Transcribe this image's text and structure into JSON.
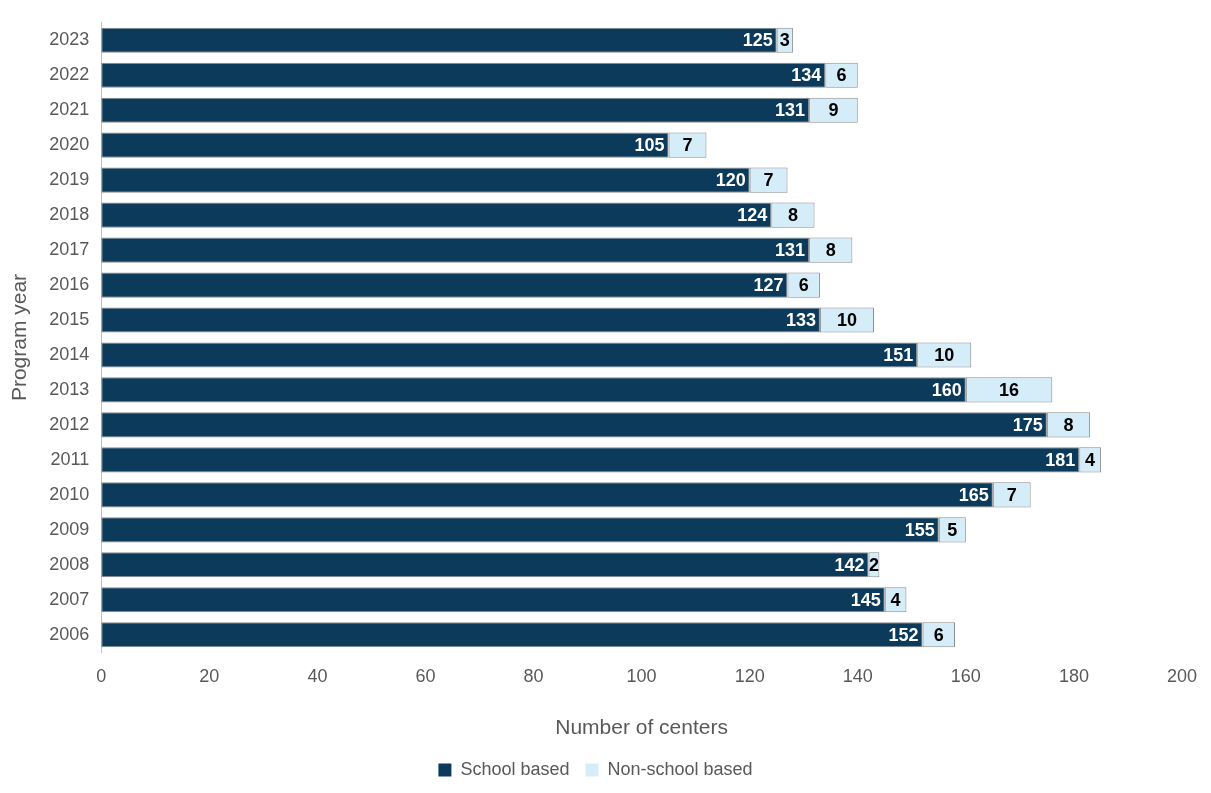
{
  "chart_data": {
    "type": "bar",
    "orientation": "horizontal",
    "stacked": true,
    "xlabel": "Number of centers",
    "ylabel": "Program year",
    "categories": [
      "2023",
      "2022",
      "2021",
      "2020",
      "2019",
      "2018",
      "2017",
      "2016",
      "2015",
      "2014",
      "2013",
      "2012",
      "2011",
      "2010",
      "2009",
      "2008",
      "2007",
      "2006"
    ],
    "series": [
      {
        "name": "School based",
        "color": "#0b3a5a",
        "values": [
          125,
          134,
          131,
          105,
          120,
          124,
          131,
          127,
          133,
          151,
          160,
          175,
          181,
          165,
          155,
          142,
          145,
          152
        ]
      },
      {
        "name": "Non-school based",
        "color": "#d5edf9",
        "values": [
          3,
          6,
          9,
          7,
          7,
          8,
          8,
          6,
          10,
          10,
          16,
          8,
          4,
          7,
          5,
          2,
          4,
          6
        ]
      }
    ],
    "xlim": [
      0,
      200
    ],
    "xticks": [
      0,
      20,
      40,
      60,
      80,
      100,
      120,
      140,
      160,
      180,
      200
    ],
    "grid": false,
    "legend": "bottom",
    "data_labels": true
  }
}
